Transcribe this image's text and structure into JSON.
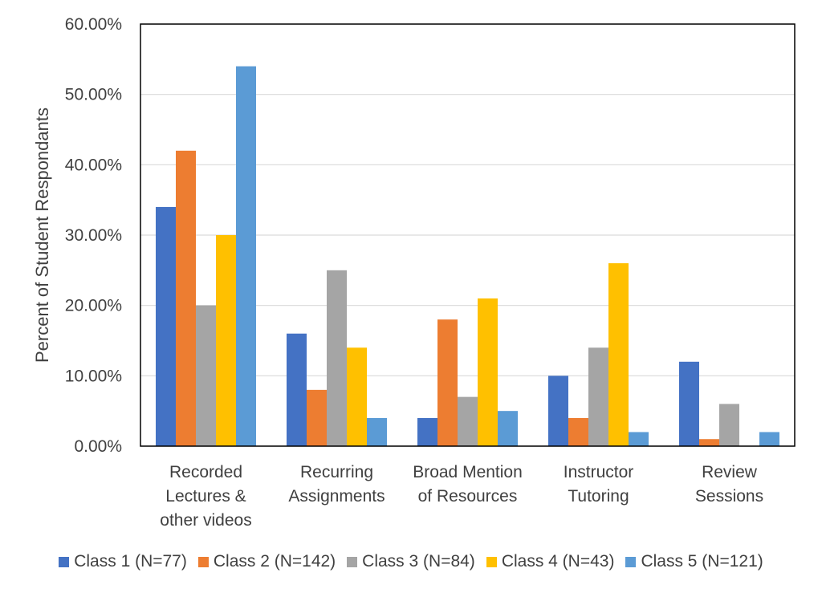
{
  "colors": {
    "class1": "#4472C4",
    "class2": "#ED7D31",
    "class3": "#A5A5A5",
    "class4": "#FFC000",
    "class5": "#5B9BD5",
    "gridline": "#D9D9D9",
    "frame": "#000000"
  },
  "chart_data": {
    "type": "bar",
    "title": "",
    "xlabel": "",
    "ylabel": "Percent of Student Respondants",
    "ylim": [
      0,
      60
    ],
    "yticks": [
      "0.00%",
      "10.00%",
      "20.00%",
      "30.00%",
      "40.00%",
      "50.00%",
      "60.00%"
    ],
    "grid": true,
    "legend_position": "bottom",
    "categories": [
      [
        "Recorded",
        "Lectures &",
        "other videos"
      ],
      [
        "Recurring",
        "Assignments"
      ],
      [
        "Broad Mention",
        "of Resources"
      ],
      [
        "Instructor",
        "Tutoring"
      ],
      [
        "Review",
        "Sessions"
      ]
    ],
    "series": [
      {
        "name": "Class 1 (N=77)",
        "color_key": "class1",
        "values": [
          34,
          16,
          4,
          10,
          12
        ]
      },
      {
        "name": "Class 2 (N=142)",
        "color_key": "class2",
        "values": [
          42,
          8,
          18,
          4,
          1
        ]
      },
      {
        "name": "Class 3 (N=84)",
        "color_key": "class3",
        "values": [
          20,
          25,
          7,
          14,
          6
        ]
      },
      {
        "name": "Class 4 (N=43)",
        "color_key": "class4",
        "values": [
          30,
          14,
          21,
          26,
          0
        ]
      },
      {
        "name": "Class 5 (N=121)",
        "color_key": "class5",
        "values": [
          54,
          4,
          5,
          2,
          2
        ]
      }
    ]
  }
}
